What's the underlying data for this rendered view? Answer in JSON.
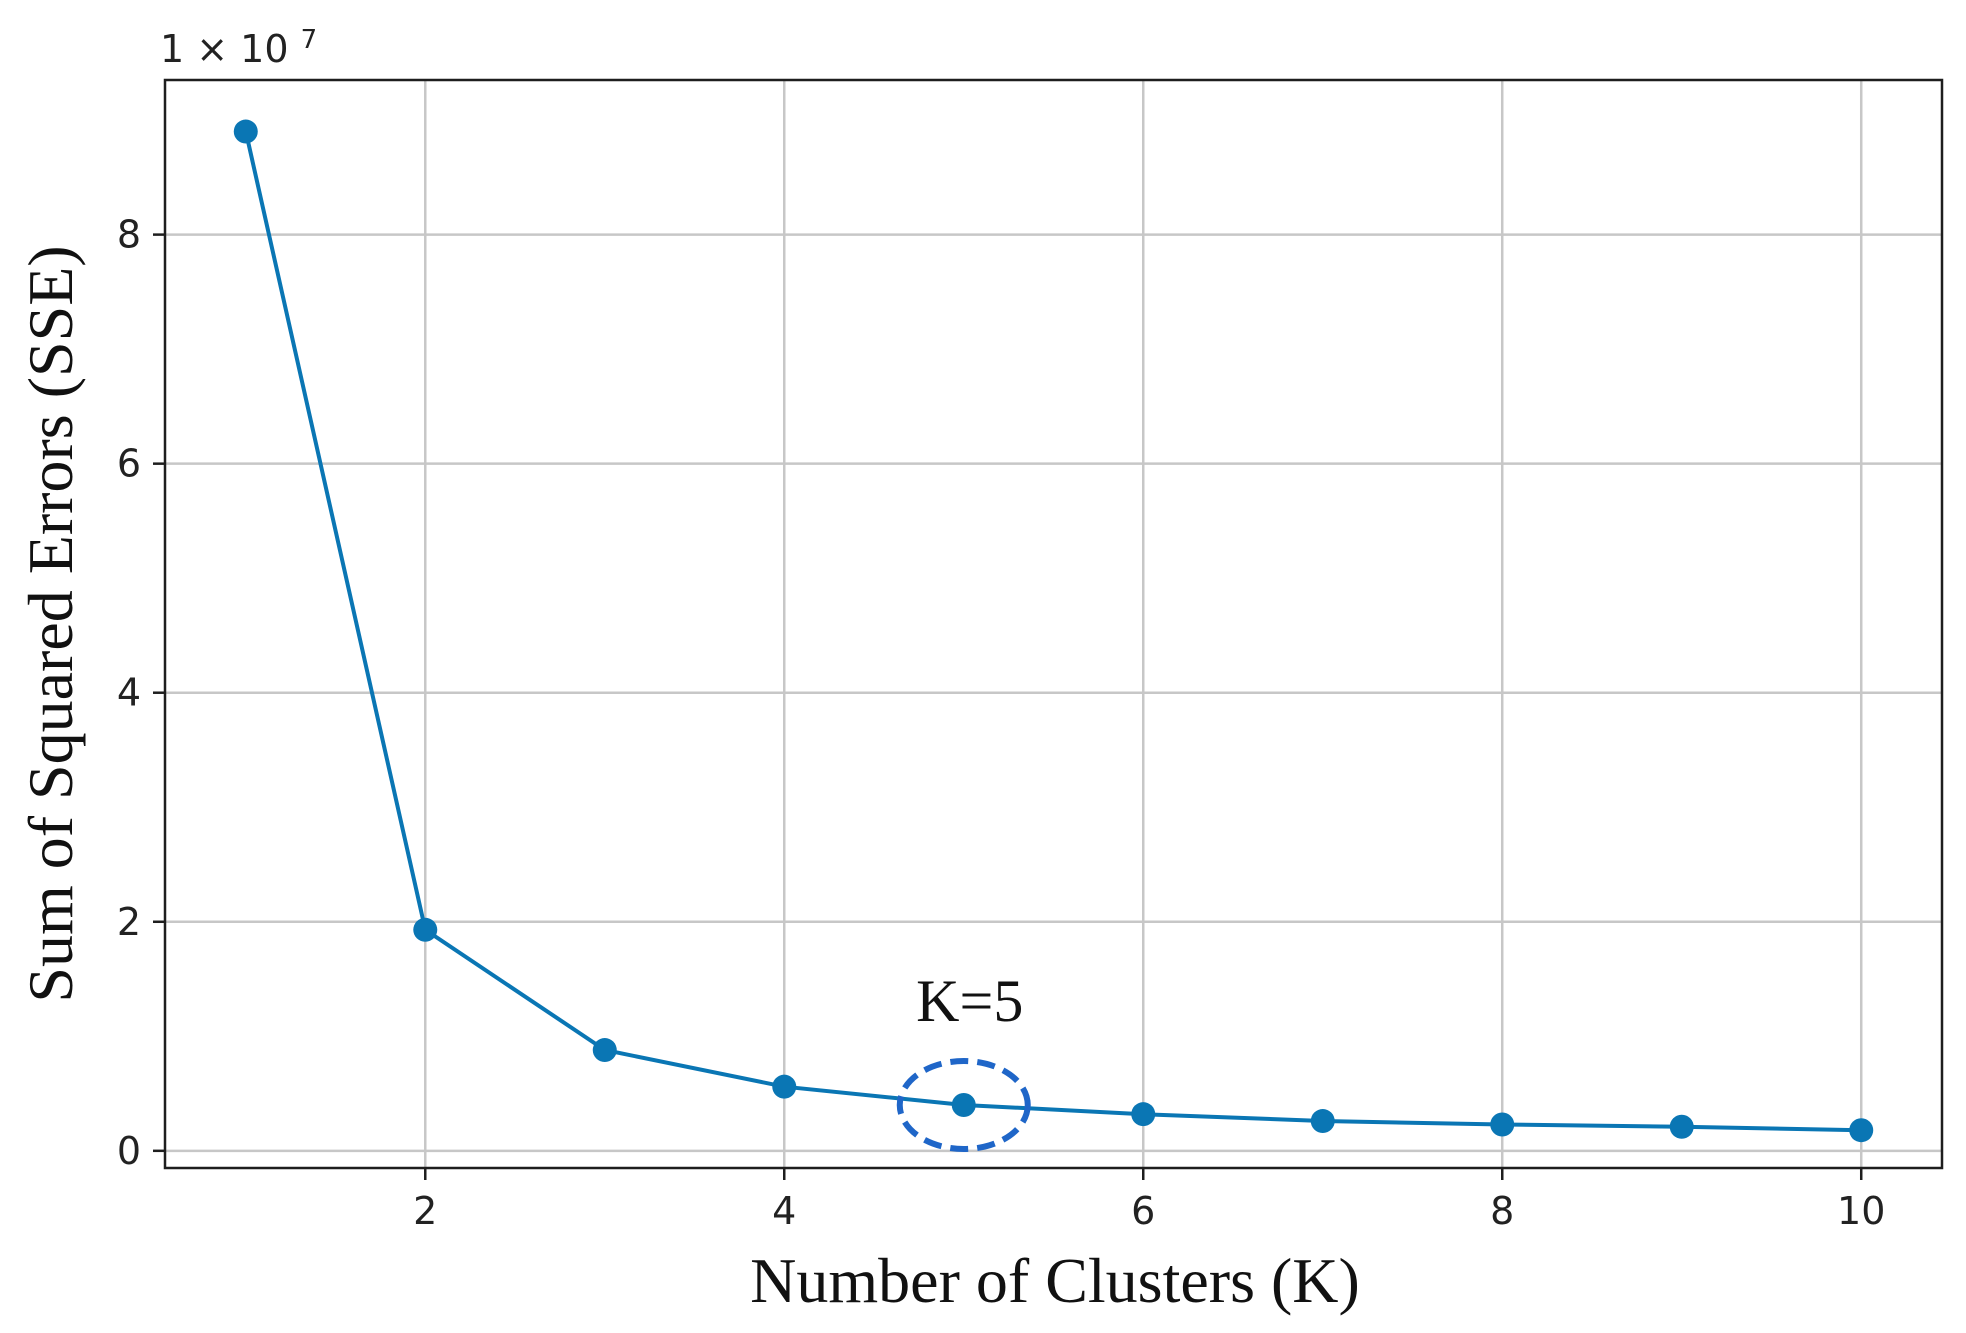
{
  "chart_data": {
    "type": "line",
    "x": [
      1,
      2,
      3,
      4,
      5,
      6,
      7,
      8,
      9,
      10
    ],
    "series": [
      {
        "values": [
          8.9,
          1.93,
          0.88,
          0.56,
          0.4,
          0.32,
          0.26,
          0.23,
          0.21,
          0.18
        ]
      }
    ],
    "xlabel": "Number of Clusters (K)",
    "ylabel": "Sum of Squared Errors (SSE)",
    "y_offset_label": {
      "base": "1 × 10",
      "exponent": "7"
    },
    "xlim": [
      0.55,
      10.45
    ],
    "ylim": [
      -0.15,
      9.35
    ],
    "xticks": [
      2,
      4,
      6,
      8,
      10
    ],
    "xtick_labels": [
      "2",
      "4",
      "6",
      "8",
      "10"
    ],
    "yticks": [
      0,
      2,
      4,
      6,
      8
    ],
    "ytick_labels": [
      "0",
      "2",
      "4",
      "6",
      "8"
    ],
    "grid": true,
    "colors": {
      "line": "#0a76b4",
      "marker": "#0a76b4",
      "grid": "#c7c7c7",
      "annotation": "#1f66c8"
    },
    "annotation": {
      "text": "K=5",
      "x": 5,
      "y": 0.4
    }
  }
}
